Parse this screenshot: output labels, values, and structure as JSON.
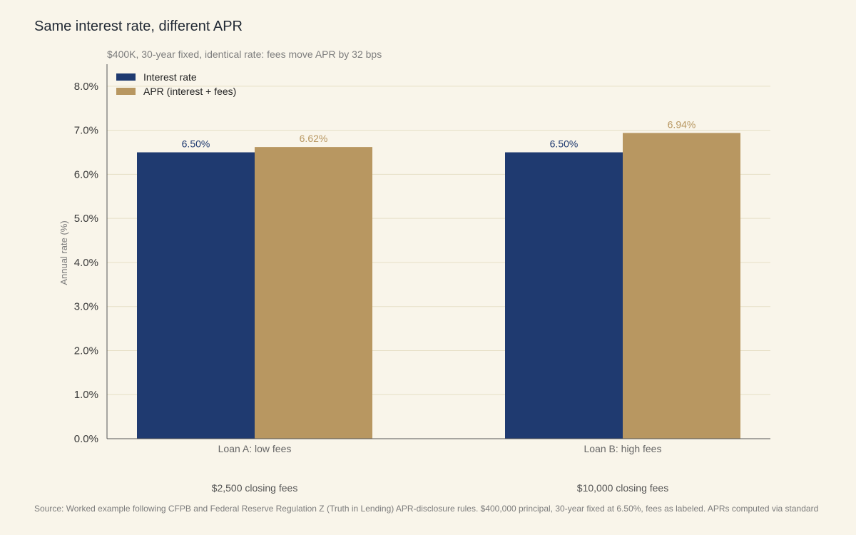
{
  "chart_data": {
    "type": "bar",
    "title": "Same interest rate, different APR",
    "subtitle": "$400K, 30-year fixed, identical rate: fees move APR by 32 bps",
    "ylabel": "Annual rate (%)",
    "xlabel": "",
    "ylim": [
      0,
      8.5
    ],
    "yticks": [
      0,
      1,
      2,
      3,
      4,
      5,
      6,
      7,
      8
    ],
    "ytick_labels": [
      "0.0%",
      "1.0%",
      "2.0%",
      "3.0%",
      "4.0%",
      "5.0%",
      "6.0%",
      "7.0%",
      "8.0%"
    ],
    "grid": true,
    "legend_position": "top-left",
    "categories": [
      "Loan A: low fees",
      "Loan B: high fees"
    ],
    "category_notes": [
      "$2,500 closing fees",
      "$10,000 closing fees"
    ],
    "series": [
      {
        "name": "Interest rate",
        "values": [
          6.5,
          6.5
        ],
        "labels": [
          "6.50%",
          "6.50%"
        ],
        "color": "#1f3a70",
        "label_color": "#1f3a70"
      },
      {
        "name": "APR (interest + fees)",
        "values": [
          6.62,
          6.94
        ],
        "labels": [
          "6.62%",
          "6.94%"
        ],
        "color": "#b89761",
        "label_color": "#b89761"
      }
    ],
    "source": "Source: Worked example following CFPB and Federal Reserve Regulation Z (Truth in Lending) APR-disclosure rules. $400,000 principal, 30-year fixed at 6.50%, fees as labeled. APRs computed via standard"
  },
  "colors": {
    "background": "#f9f5ea",
    "gridline": "#e6dfc6",
    "axis": "#555555"
  }
}
